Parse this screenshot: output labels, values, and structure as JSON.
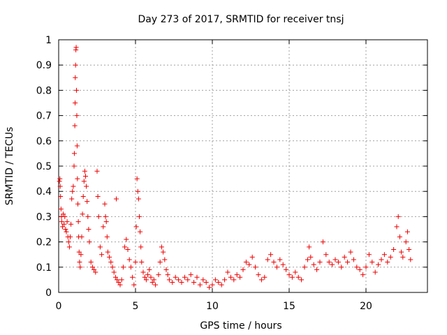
{
  "chart_data": {
    "type": "scatter",
    "title": "Day 273 of 2017, SRMTID for receiver tnsj",
    "xlabel": "GPS time / hours",
    "ylabel": "SRMTID / TECUs",
    "xlim": [
      0,
      24
    ],
    "ylim": [
      0,
      1
    ],
    "xticks": [
      0,
      5,
      10,
      15,
      20
    ],
    "xtick_labels": [
      "0",
      "5",
      "10",
      "15",
      "20"
    ],
    "yticks": [
      0,
      0.1,
      0.2,
      0.3,
      0.4,
      0.5,
      0.6,
      0.7,
      0.8,
      0.9,
      1
    ],
    "ytick_labels": [
      "0",
      "0.1",
      "0.2",
      "0.3",
      "0.4",
      "0.5",
      "0.6",
      "0.7",
      "0.8",
      "0.9",
      "1"
    ],
    "grid": true,
    "marker": "+",
    "series": [
      {
        "name": "SRMTID",
        "color": "#ee0000",
        "points": [
          [
            0.05,
            0.44
          ],
          [
            0.08,
            0.45
          ],
          [
            0.1,
            0.42
          ],
          [
            0.12,
            0.38
          ],
          [
            0.15,
            0.33
          ],
          [
            0.18,
            0.3
          ],
          [
            0.2,
            0.28
          ],
          [
            0.25,
            0.26
          ],
          [
            0.3,
            0.31
          ],
          [
            0.35,
            0.27
          ],
          [
            0.4,
            0.3
          ],
          [
            0.45,
            0.25
          ],
          [
            0.5,
            0.24
          ],
          [
            0.55,
            0.28
          ],
          [
            0.6,
            0.22
          ],
          [
            0.65,
            0.2
          ],
          [
            0.7,
            0.18
          ],
          [
            0.75,
            0.22
          ],
          [
            0.8,
            0.27
          ],
          [
            0.85,
            0.37
          ],
          [
            0.9,
            0.4
          ],
          [
            0.95,
            0.42
          ],
          [
            1.0,
            0.5
          ],
          [
            1.02,
            0.55
          ],
          [
            1.05,
            0.66
          ],
          [
            1.07,
            0.75
          ],
          [
            1.08,
            0.85
          ],
          [
            1.1,
            0.9
          ],
          [
            1.12,
            0.96
          ],
          [
            1.14,
            0.97
          ],
          [
            1.16,
            0.8
          ],
          [
            1.18,
            0.7
          ],
          [
            1.2,
            0.58
          ],
          [
            1.22,
            0.45
          ],
          [
            1.25,
            0.35
          ],
          [
            1.28,
            0.28
          ],
          [
            1.3,
            0.22
          ],
          [
            1.33,
            0.16
          ],
          [
            1.36,
            0.12
          ],
          [
            1.4,
            0.1
          ],
          [
            1.45,
            0.15
          ],
          [
            1.5,
            0.22
          ],
          [
            1.55,
            0.31
          ],
          [
            1.6,
            0.38
          ],
          [
            1.65,
            0.44
          ],
          [
            1.7,
            0.48
          ],
          [
            1.75,
            0.46
          ],
          [
            1.8,
            0.42
          ],
          [
            1.85,
            0.36
          ],
          [
            1.9,
            0.3
          ],
          [
            1.95,
            0.25
          ],
          [
            2.0,
            0.2
          ],
          [
            2.1,
            0.12
          ],
          [
            2.2,
            0.1
          ],
          [
            2.3,
            0.09
          ],
          [
            2.4,
            0.08
          ],
          [
            2.5,
            0.48
          ],
          [
            2.55,
            0.38
          ],
          [
            2.6,
            0.3
          ],
          [
            2.7,
            0.18
          ],
          [
            2.8,
            0.15
          ],
          [
            2.9,
            0.26
          ],
          [
            3.0,
            0.35
          ],
          [
            3.05,
            0.3
          ],
          [
            3.1,
            0.28
          ],
          [
            3.15,
            0.22
          ],
          [
            3.2,
            0.16
          ],
          [
            3.3,
            0.14
          ],
          [
            3.4,
            0.12
          ],
          [
            3.5,
            0.1
          ],
          [
            3.6,
            0.08
          ],
          [
            3.7,
            0.06
          ],
          [
            3.75,
            0.37
          ],
          [
            3.8,
            0.05
          ],
          [
            3.9,
            0.04
          ],
          [
            4.0,
            0.03
          ],
          [
            4.1,
            0.05
          ],
          [
            4.2,
            0.1
          ],
          [
            4.3,
            0.18
          ],
          [
            4.4,
            0.21
          ],
          [
            4.5,
            0.17
          ],
          [
            4.6,
            0.13
          ],
          [
            4.7,
            0.1
          ],
          [
            4.8,
            0.06
          ],
          [
            4.9,
            0.03
          ],
          [
            5.0,
            0.12
          ],
          [
            5.05,
            0.26
          ],
          [
            5.1,
            0.45
          ],
          [
            5.15,
            0.4
          ],
          [
            5.2,
            0.37
          ],
          [
            5.25,
            0.3
          ],
          [
            5.3,
            0.24
          ],
          [
            5.35,
            0.18
          ],
          [
            5.4,
            0.12
          ],
          [
            5.5,
            0.08
          ],
          [
            5.6,
            0.06
          ],
          [
            5.7,
            0.05
          ],
          [
            5.8,
            0.07
          ],
          [
            5.9,
            0.09
          ],
          [
            6.0,
            0.06
          ],
          [
            6.1,
            0.04
          ],
          [
            6.2,
            0.05
          ],
          [
            6.3,
            0.03
          ],
          [
            6.5,
            0.07
          ],
          [
            6.6,
            0.12
          ],
          [
            6.7,
            0.18
          ],
          [
            6.8,
            0.16
          ],
          [
            6.9,
            0.13
          ],
          [
            7.0,
            0.09
          ],
          [
            7.1,
            0.07
          ],
          [
            7.2,
            0.05
          ],
          [
            7.4,
            0.04
          ],
          [
            7.6,
            0.06
          ],
          [
            7.8,
            0.05
          ],
          [
            8.0,
            0.04
          ],
          [
            8.2,
            0.06
          ],
          [
            8.4,
            0.05
          ],
          [
            8.6,
            0.07
          ],
          [
            8.8,
            0.04
          ],
          [
            9.0,
            0.06
          ],
          [
            9.2,
            0.03
          ],
          [
            9.4,
            0.05
          ],
          [
            9.6,
            0.04
          ],
          [
            9.8,
            0.02
          ],
          [
            10.0,
            0.03
          ],
          [
            10.2,
            0.05
          ],
          [
            10.4,
            0.04
          ],
          [
            10.6,
            0.03
          ],
          [
            10.8,
            0.05
          ],
          [
            11.0,
            0.08
          ],
          [
            11.2,
            0.06
          ],
          [
            11.4,
            0.05
          ],
          [
            11.6,
            0.07
          ],
          [
            11.8,
            0.06
          ],
          [
            12.0,
            0.09
          ],
          [
            12.2,
            0.12
          ],
          [
            12.4,
            0.11
          ],
          [
            12.6,
            0.14
          ],
          [
            12.8,
            0.1
          ],
          [
            13.0,
            0.07
          ],
          [
            13.2,
            0.05
          ],
          [
            13.4,
            0.06
          ],
          [
            13.6,
            0.13
          ],
          [
            13.8,
            0.15
          ],
          [
            14.0,
            0.12
          ],
          [
            14.2,
            0.1
          ],
          [
            14.4,
            0.13
          ],
          [
            14.6,
            0.11
          ],
          [
            14.8,
            0.09
          ],
          [
            15.0,
            0.07
          ],
          [
            15.2,
            0.06
          ],
          [
            15.4,
            0.08
          ],
          [
            15.6,
            0.06
          ],
          [
            15.8,
            0.05
          ],
          [
            16.0,
            0.1
          ],
          [
            16.2,
            0.13
          ],
          [
            16.3,
            0.18
          ],
          [
            16.4,
            0.14
          ],
          [
            16.6,
            0.11
          ],
          [
            16.8,
            0.09
          ],
          [
            17.0,
            0.12
          ],
          [
            17.2,
            0.2
          ],
          [
            17.4,
            0.15
          ],
          [
            17.6,
            0.12
          ],
          [
            17.8,
            0.11
          ],
          [
            18.0,
            0.13
          ],
          [
            18.2,
            0.12
          ],
          [
            18.4,
            0.1
          ],
          [
            18.6,
            0.14
          ],
          [
            18.8,
            0.12
          ],
          [
            19.0,
            0.16
          ],
          [
            19.2,
            0.13
          ],
          [
            19.4,
            0.1
          ],
          [
            19.6,
            0.09
          ],
          [
            19.8,
            0.07
          ],
          [
            20.0,
            0.1
          ],
          [
            20.2,
            0.15
          ],
          [
            20.4,
            0.12
          ],
          [
            20.6,
            0.08
          ],
          [
            20.8,
            0.11
          ],
          [
            21.0,
            0.13
          ],
          [
            21.2,
            0.15
          ],
          [
            21.4,
            0.12
          ],
          [
            21.6,
            0.14
          ],
          [
            21.8,
            0.17
          ],
          [
            22.0,
            0.26
          ],
          [
            22.1,
            0.3
          ],
          [
            22.2,
            0.22
          ],
          [
            22.3,
            0.16
          ],
          [
            22.4,
            0.14
          ],
          [
            22.6,
            0.2
          ],
          [
            22.7,
            0.24
          ],
          [
            22.8,
            0.17
          ],
          [
            22.9,
            0.13
          ]
        ]
      }
    ]
  }
}
